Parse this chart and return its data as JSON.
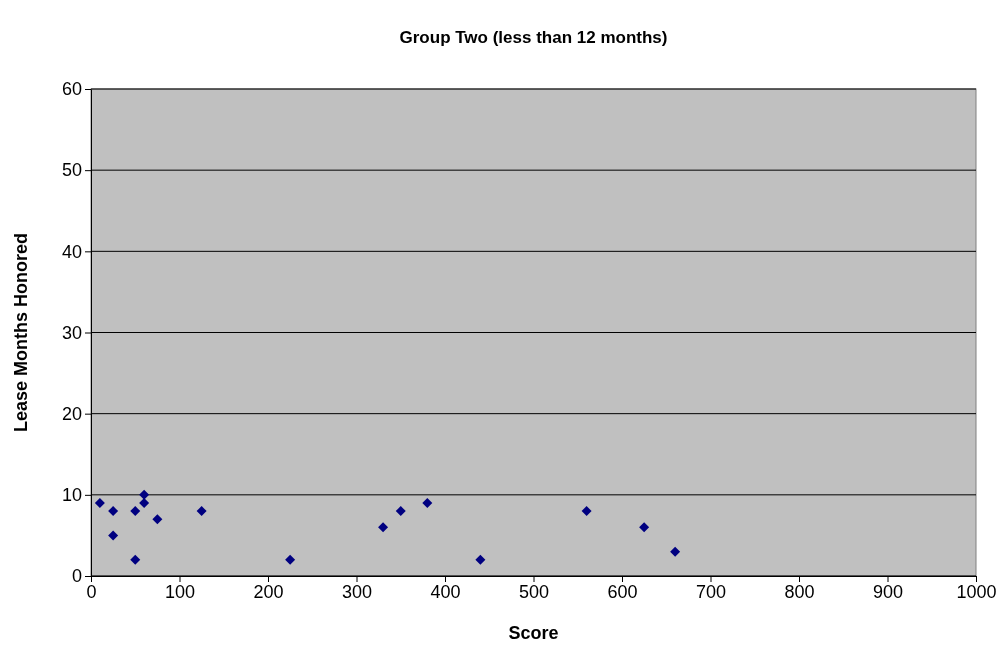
{
  "chart_data": {
    "type": "scatter",
    "title": "Group Two (less than 12 months)",
    "xlabel": "Score",
    "ylabel": "Lease Months Honored",
    "x": [
      10,
      25,
      25,
      50,
      50,
      60,
      60,
      75,
      125,
      225,
      330,
      350,
      380,
      440,
      560,
      625,
      660
    ],
    "values": [
      9,
      8,
      5,
      8,
      2,
      10,
      9,
      7,
      8,
      2,
      6,
      8,
      9,
      2,
      8,
      6,
      3
    ],
    "color": "#000080",
    "marker": "diamond",
    "grid": "y",
    "xlim": [
      0,
      1000
    ],
    "xticks": [
      0,
      100,
      200,
      300,
      400,
      500,
      600,
      700,
      800,
      900,
      1000
    ],
    "ylim": [
      0,
      60
    ],
    "yticks": [
      0,
      10,
      20,
      30,
      40,
      50,
      60
    ]
  }
}
